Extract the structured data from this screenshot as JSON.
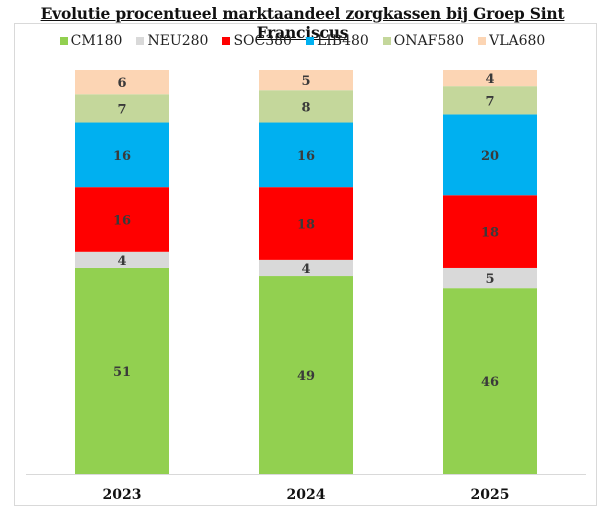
{
  "chart_data": {
    "type": "bar",
    "stacked": true,
    "title": "Evolutie procentueel marktaandeel zorgkassen bij Groep Sint Franciscus",
    "xlabel": "",
    "ylabel": "",
    "ylim": [
      0,
      100
    ],
    "grid": false,
    "legend_position": "top",
    "categories": [
      "2023",
      "2024",
      "2025"
    ],
    "series": [
      {
        "name": "CM180",
        "color": "#92d050",
        "values": [
          51,
          49,
          46
        ]
      },
      {
        "name": "NEU280",
        "color": "#d9d9d9",
        "values": [
          4,
          4,
          5
        ]
      },
      {
        "name": "SOC380",
        "color": "#ff0000",
        "values": [
          16,
          18,
          18
        ]
      },
      {
        "name": "LIB480",
        "color": "#00b0f0",
        "values": [
          16,
          16,
          20
        ]
      },
      {
        "name": "ONAF580",
        "color": "#c4d79b",
        "values": [
          7,
          8,
          7
        ]
      },
      {
        "name": "VLA680",
        "color": "#fcd5b4",
        "values": [
          6,
          5,
          4
        ]
      }
    ]
  }
}
